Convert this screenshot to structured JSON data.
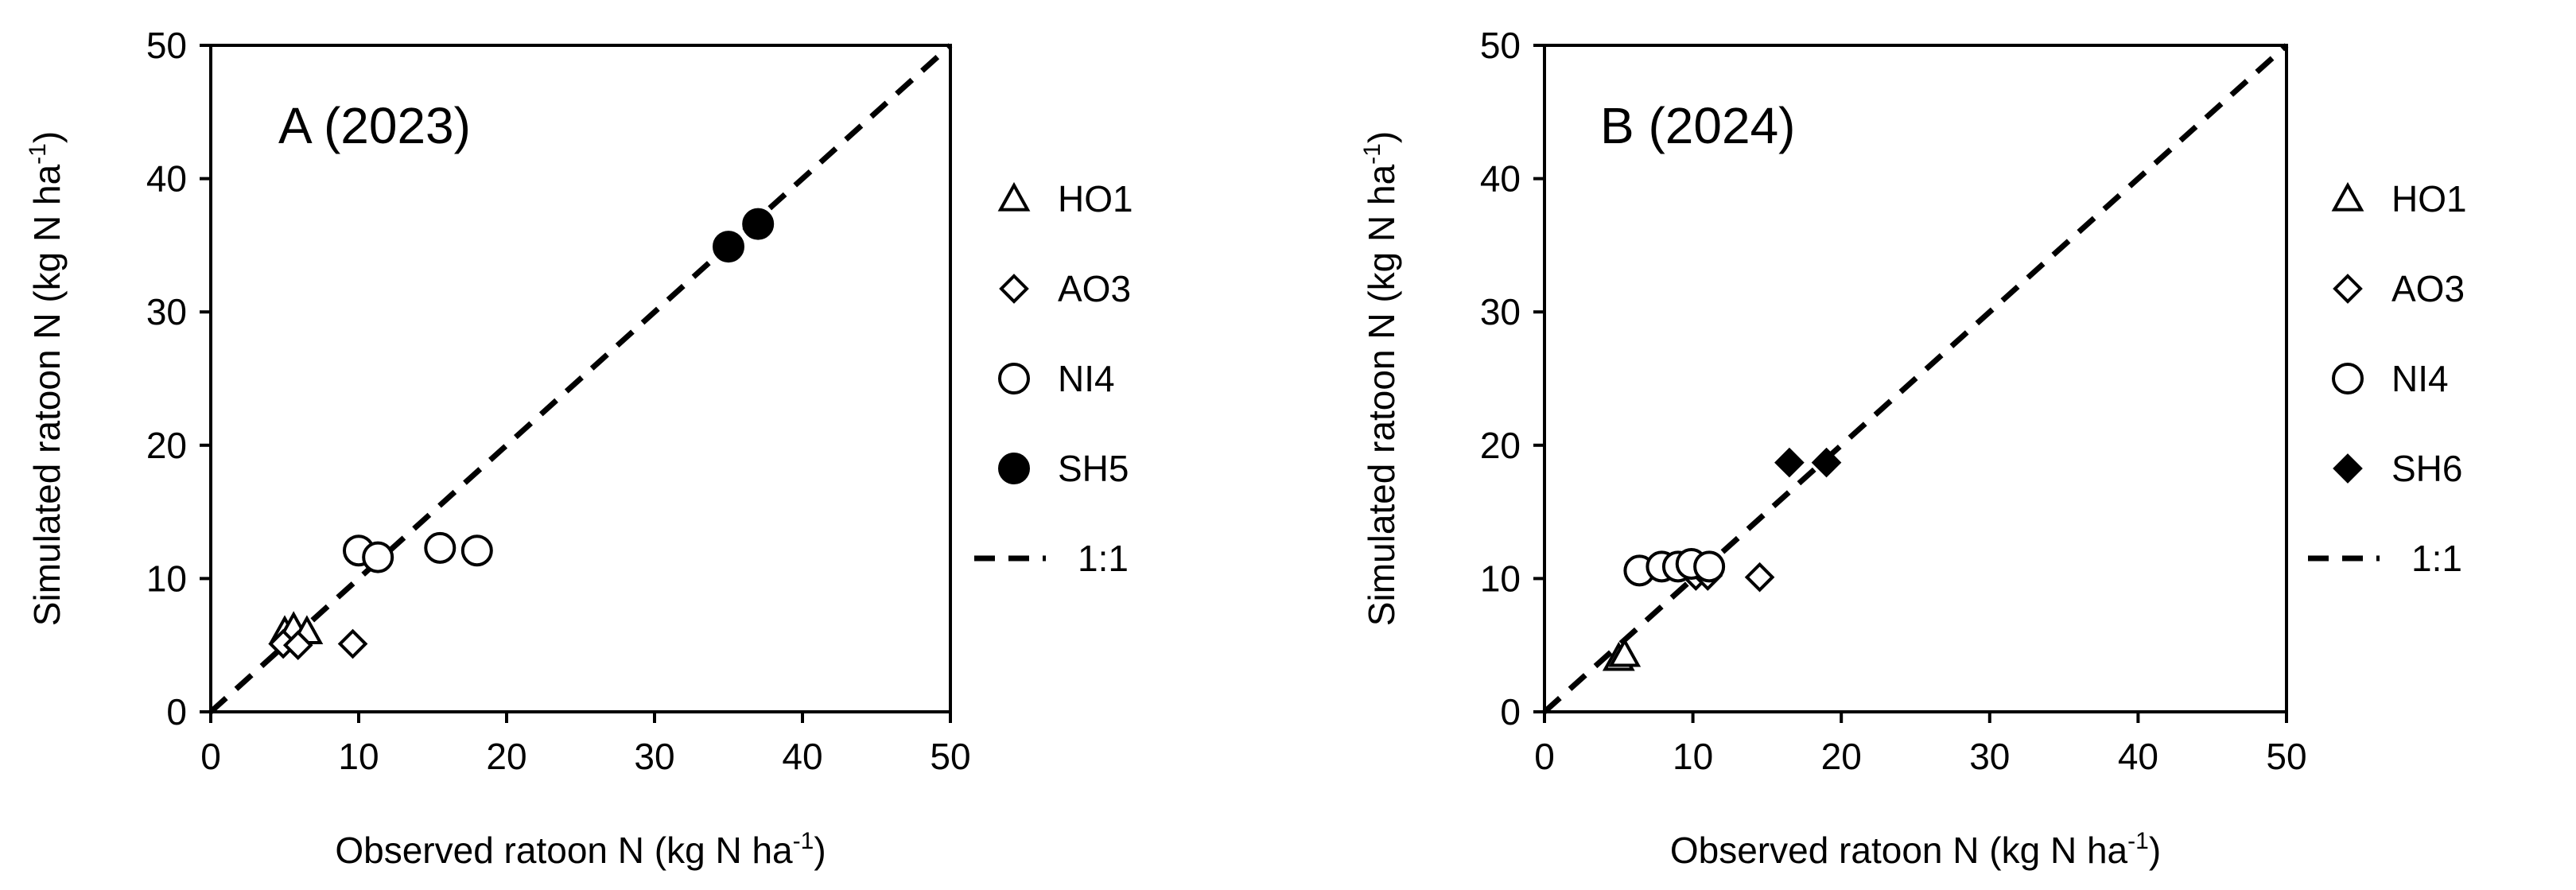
{
  "chart_data": [
    {
      "type": "scatter",
      "panel_label": "A (2023)",
      "xlabel": "Observed ratoon N (kg N ha",
      "xlabel_sup": "-1",
      "xlabel_end": ")",
      "ylabel": "Simulated ratoon N (kg N ha",
      "ylabel_sup": "-1",
      "ylabel_end": ")",
      "xlim": [
        0,
        50
      ],
      "ylim": [
        0,
        50
      ],
      "xticks": [
        "0",
        "10",
        "20",
        "30",
        "40",
        "50"
      ],
      "yticks": [
        "0",
        "10",
        "20",
        "30",
        "40",
        "50"
      ],
      "grid": false,
      "legend_position": "right",
      "one_to_one_label": "1:1",
      "series": [
        {
          "name": "HO1",
          "marker": "triangle-open",
          "points": [
            [
              5.0,
              6.0
            ],
            [
              5.6,
              6.3
            ],
            [
              6.5,
              6.0
            ]
          ]
        },
        {
          "name": "AO3",
          "marker": "diamond-open",
          "points": [
            [
              4.9,
              5.1
            ],
            [
              5.9,
              5.0
            ],
            [
              9.6,
              5.1
            ]
          ]
        },
        {
          "name": "NI4",
          "marker": "circle-open",
          "points": [
            [
              10.0,
              12.1
            ],
            [
              11.3,
              11.6
            ],
            [
              15.5,
              12.3
            ],
            [
              18.0,
              12.1
            ]
          ]
        },
        {
          "name": "SH5",
          "marker": "circle-filled",
          "points": [
            [
              35.0,
              34.9
            ],
            [
              37.0,
              36.6
            ]
          ]
        }
      ]
    },
    {
      "type": "scatter",
      "panel_label": "B (2024)",
      "xlabel": "Observed ratoon N (kg N ha",
      "xlabel_sup": "-1",
      "xlabel_end": ")",
      "ylabel": "Simulated ratoon N (kg N ha",
      "ylabel_sup": "-1",
      "ylabel_end": ")",
      "xlim": [
        0,
        50
      ],
      "ylim": [
        0,
        50
      ],
      "xticks": [
        "0",
        "10",
        "20",
        "30",
        "40",
        "50"
      ],
      "yticks": [
        "0",
        "10",
        "20",
        "30",
        "40",
        "50"
      ],
      "grid": false,
      "legend_position": "right",
      "one_to_one_label": "1:1",
      "series": [
        {
          "name": "HO1",
          "marker": "triangle-open",
          "points": [
            [
              5.0,
              4.0
            ],
            [
              5.4,
              4.3
            ]
          ]
        },
        {
          "name": "AO3",
          "marker": "diamond-open",
          "points": [
            [
              10.2,
              10.2
            ],
            [
              11.0,
              10.2
            ],
            [
              14.5,
              10.1
            ]
          ]
        },
        {
          "name": "NI4",
          "marker": "circle-open",
          "points": [
            [
              6.4,
              10.6
            ],
            [
              7.9,
              10.9
            ],
            [
              9.0,
              10.9
            ],
            [
              9.9,
              11.1
            ],
            [
              11.1,
              10.9
            ]
          ]
        },
        {
          "name": "SH6",
          "marker": "diamond-filled",
          "points": [
            [
              16.5,
              18.7
            ],
            [
              19.0,
              18.7
            ]
          ]
        }
      ]
    }
  ]
}
